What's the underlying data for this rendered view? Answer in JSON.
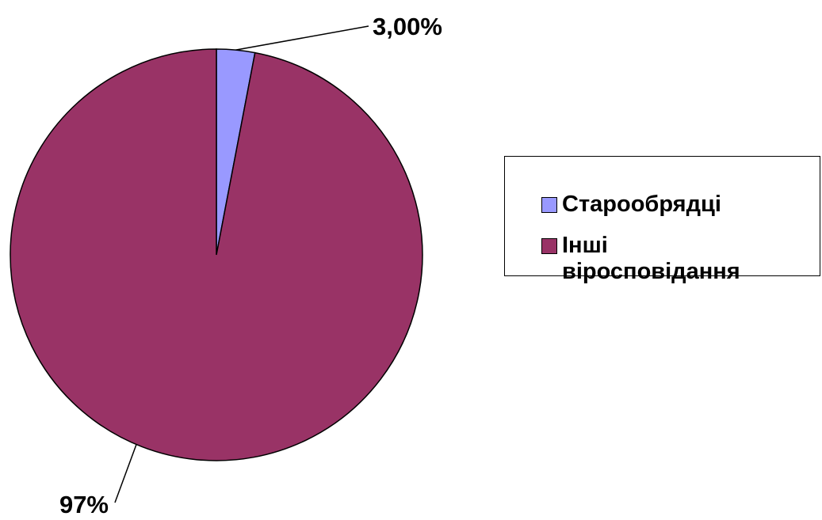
{
  "chart_data": {
    "type": "pie",
    "categories": [
      "Старообрядці",
      "Інші віросповідання"
    ],
    "values": [
      3,
      97
    ],
    "value_labels": [
      "3,00%",
      "97%"
    ],
    "colors": [
      "#9999ff",
      "#993366"
    ],
    "legend": "right"
  }
}
